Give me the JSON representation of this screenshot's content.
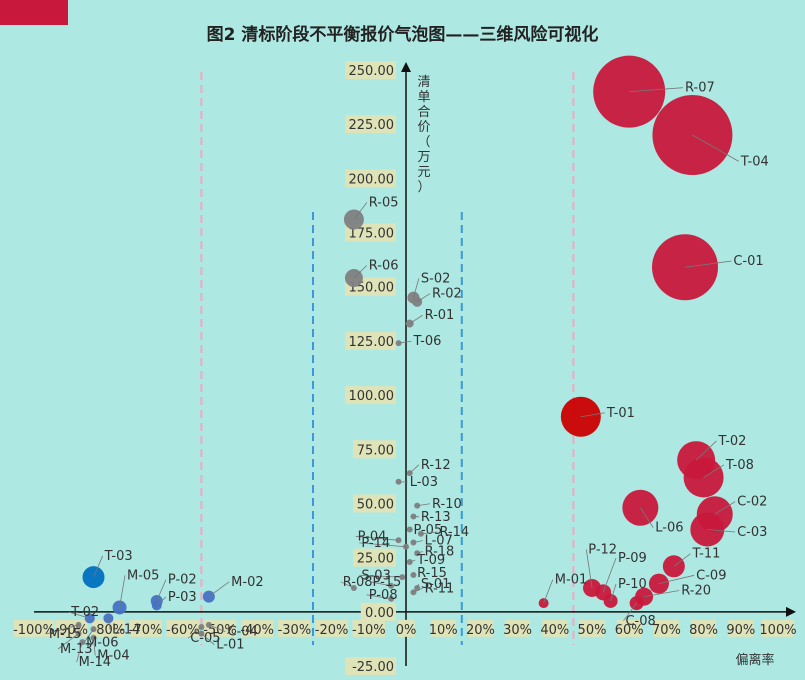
{
  "chart_data": {
    "type": "scatter",
    "title": "图2  清标阶段不平衡报价气泡图——三维风险可视化",
    "xlabel": "偏离率",
    "ylabel": "清单合价（万元）",
    "xlim": [
      -1.0,
      1.0
    ],
    "ylim": [
      -25,
      250
    ],
    "x_ticks": [
      "-100%",
      "-90%",
      "-80%",
      "-70%",
      "-60%",
      "-50%",
      "-40%",
      "-30%",
      "-20%",
      "-10%",
      "0%",
      "10%",
      "20%",
      "30%",
      "40%",
      "50%",
      "60%",
      "70%",
      "80%",
      "90%",
      "100%"
    ],
    "y_ticks": [
      "-25.00",
      "0.00",
      "25.00",
      "50.00",
      "75.00",
      "100.00",
      "125.00",
      "150.00",
      "175.00",
      "200.00",
      "225.00",
      "250.00"
    ],
    "reference_lines": {
      "pink_dashed": [
        -0.55,
        0.45
      ],
      "blue_dashed": [
        -0.25,
        0.15
      ]
    },
    "colors": {
      "accent_block": "#c8193c",
      "high_positive": "#c8193c",
      "highlight_red": "#cc0000",
      "neutral": "#808080",
      "negative": "#4472c4",
      "highlight_blue": "#0070c0",
      "pink_line": "#f4a8c0",
      "blue_line": "#3a9ad9"
    },
    "points": [
      {
        "label": "R-07",
        "x": 0.6,
        "y": 240,
        "size": 36,
        "color": "#c8193c",
        "lx": 0.75,
        "ly": 240
      },
      {
        "label": "T-04",
        "x": 0.77,
        "y": 220,
        "size": 40,
        "color": "#c8193c",
        "lx": 0.9,
        "ly": 206
      },
      {
        "label": "C-01",
        "x": 0.75,
        "y": 159,
        "size": 33,
        "color": "#c8193c",
        "lx": 0.88,
        "ly": 160
      },
      {
        "label": "T-01",
        "x": 0.47,
        "y": 90,
        "size": 20,
        "color": "#cc0000",
        "lx": 0.54,
        "ly": 90
      },
      {
        "label": "T-02",
        "x": 0.78,
        "y": 70,
        "size": 19,
        "color": "#c8193c",
        "lx": 0.84,
        "ly": 77
      },
      {
        "label": "T-08",
        "x": 0.8,
        "y": 62,
        "size": 20,
        "color": "#c8193c",
        "lx": 0.86,
        "ly": 66
      },
      {
        "label": "C-02",
        "x": 0.83,
        "y": 45,
        "size": 18,
        "color": "#c8193c",
        "lx": 0.89,
        "ly": 49
      },
      {
        "label": "C-03",
        "x": 0.81,
        "y": 38,
        "size": 17,
        "color": "#c8193c",
        "lx": 0.89,
        "ly": 35
      },
      {
        "label": "L-06",
        "x": 0.63,
        "y": 48,
        "size": 18,
        "color": "#c8193c",
        "lx": 0.67,
        "ly": 37
      },
      {
        "label": "T-11",
        "x": 0.72,
        "y": 21,
        "size": 11,
        "color": "#c8193c",
        "lx": 0.77,
        "ly": 25
      },
      {
        "label": "C-09",
        "x": 0.68,
        "y": 13,
        "size": 10,
        "color": "#c8193c",
        "lx": 0.78,
        "ly": 15
      },
      {
        "label": "R-20",
        "x": 0.64,
        "y": 7,
        "size": 9,
        "color": "#c8193c",
        "lx": 0.74,
        "ly": 8
      },
      {
        "label": "P-12",
        "x": 0.5,
        "y": 11,
        "size": 9,
        "color": "#c8193c",
        "lx": 0.49,
        "ly": 27
      },
      {
        "label": "P-09",
        "x": 0.53,
        "y": 9,
        "size": 8,
        "color": "#c8193c",
        "lx": 0.57,
        "ly": 23
      },
      {
        "label": "P-10",
        "x": 0.55,
        "y": 5,
        "size": 7,
        "color": "#c8193c",
        "lx": 0.57,
        "ly": 11
      },
      {
        "label": "C-08",
        "x": 0.62,
        "y": 4,
        "size": 7,
        "color": "#c8193c",
        "lx": 0.59,
        "ly": -6
      },
      {
        "label": "M-01",
        "x": 0.37,
        "y": 4,
        "size": 5,
        "color": "#c8193c",
        "lx": 0.4,
        "ly": 13
      },
      {
        "label": "R-05",
        "x": -0.14,
        "y": 181,
        "size": 10,
        "color": "#808080",
        "lx": -0.1,
        "ly": 187
      },
      {
        "label": "R-06",
        "x": -0.14,
        "y": 154,
        "size": 9,
        "color": "#808080",
        "lx": -0.1,
        "ly": 158
      },
      {
        "label": "S-02",
        "x": 0.02,
        "y": 145,
        "size": 6,
        "color": "#808080",
        "lx": 0.04,
        "ly": 152
      },
      {
        "label": "R-02",
        "x": 0.03,
        "y": 143,
        "size": 5,
        "color": "#808080",
        "lx": 0.07,
        "ly": 145
      },
      {
        "label": "R-01",
        "x": 0.01,
        "y": 133,
        "size": 4,
        "color": "#808080",
        "lx": 0.05,
        "ly": 135
      },
      {
        "label": "T-06",
        "x": -0.02,
        "y": 124,
        "size": 3,
        "color": "#808080",
        "lx": 0.02,
        "ly": 123
      },
      {
        "label": "R-12",
        "x": 0.01,
        "y": 64,
        "size": 3,
        "color": "#808080",
        "lx": 0.04,
        "ly": 66
      },
      {
        "label": "L-03",
        "x": -0.02,
        "y": 60,
        "size": 3,
        "color": "#808080",
        "lx": 0.01,
        "ly": 58
      },
      {
        "label": "R-10",
        "x": 0.03,
        "y": 49,
        "size": 3,
        "color": "#808080",
        "lx": 0.07,
        "ly": 48
      },
      {
        "label": "R-13",
        "x": 0.02,
        "y": 44,
        "size": 3,
        "color": "#808080",
        "lx": 0.04,
        "ly": 42
      },
      {
        "label": "P-05",
        "x": 0.01,
        "y": 38,
        "size": 3,
        "color": "#808080",
        "lx": 0.02,
        "ly": 36
      },
      {
        "label": "R-14",
        "x": 0.04,
        "y": 36,
        "size": 3,
        "color": "#808080",
        "lx": 0.09,
        "ly": 35
      },
      {
        "label": "P-04",
        "x": -0.02,
        "y": 33,
        "size": 3,
        "color": "#808080",
        "lx": -0.13,
        "ly": 33
      },
      {
        "label": "L-07",
        "x": 0.02,
        "y": 32,
        "size": 3,
        "color": "#808080",
        "lx": 0.05,
        "ly": 31
      },
      {
        "label": "P-14",
        "x": 0.0,
        "y": 30,
        "size": 3,
        "color": "#808080",
        "lx": -0.12,
        "ly": 30
      },
      {
        "label": "R-18",
        "x": 0.03,
        "y": 27,
        "size": 3,
        "color": "#808080",
        "lx": 0.05,
        "ly": 26
      },
      {
        "label": "T-09",
        "x": 0.01,
        "y": 23,
        "size": 3,
        "color": "#808080",
        "lx": 0.03,
        "ly": 22
      },
      {
        "label": "R-15",
        "x": 0.02,
        "y": 17,
        "size": 3,
        "color": "#808080",
        "lx": 0.03,
        "ly": 16
      },
      {
        "label": "S-03",
        "x": -0.01,
        "y": 16,
        "size": 3,
        "color": "#808080",
        "lx": -0.12,
        "ly": 15
      },
      {
        "label": "R-08",
        "x": -0.14,
        "y": 11,
        "size": 3,
        "color": "#808080",
        "lx": -0.17,
        "ly": 12
      },
      {
        "label": "P-15",
        "x": -0.04,
        "y": 12,
        "size": 3,
        "color": "#808080",
        "lx": -0.09,
        "ly": 12
      },
      {
        "label": "S-01",
        "x": 0.03,
        "y": 11,
        "size": 3,
        "color": "#808080",
        "lx": 0.04,
        "ly": 11
      },
      {
        "label": "R-11",
        "x": 0.02,
        "y": 9,
        "size": 3,
        "color": "#808080",
        "lx": 0.05,
        "ly": 9
      },
      {
        "label": "P-08",
        "x": -0.04,
        "y": 6,
        "size": 3,
        "color": "#808080",
        "lx": -0.1,
        "ly": 6
      },
      {
        "label": "T-03",
        "x": -0.84,
        "y": 16,
        "size": 11,
        "color": "#0070c0",
        "lx": -0.81,
        "ly": 24
      },
      {
        "label": "M-05",
        "x": -0.77,
        "y": 2,
        "size": 7,
        "color": "#4472c4",
        "lx": -0.75,
        "ly": 15
      },
      {
        "label": "P-02",
        "x": -0.67,
        "y": 5,
        "size": 6,
        "color": "#4472c4",
        "lx": -0.64,
        "ly": 13
      },
      {
        "label": "P-03",
        "x": -0.67,
        "y": 3,
        "size": 5,
        "color": "#4472c4",
        "lx": -0.64,
        "ly": 5
      },
      {
        "label": "M-02",
        "x": -0.53,
        "y": 7,
        "size": 6,
        "color": "#4472c4",
        "lx": -0.47,
        "ly": 12
      },
      {
        "label": "T-02b",
        "display": "T-02",
        "x": -0.85,
        "y": -3,
        "size": 5,
        "color": "#4472c4",
        "lx": -0.9,
        "ly": -2
      },
      {
        "label": "L-14",
        "x": -0.8,
        "y": -3,
        "size": 5,
        "color": "#4472c4",
        "lx": -0.79,
        "ly": -10
      },
      {
        "label": "M-15",
        "x": -0.88,
        "y": -6,
        "size": 3,
        "color": "#808080",
        "lx": -0.96,
        "ly": -12
      },
      {
        "label": "M-06",
        "x": -0.84,
        "y": -8,
        "size": 3,
        "color": "#808080",
        "lx": -0.86,
        "ly": -16
      },
      {
        "label": "M-13",
        "x": -0.88,
        "y": -10,
        "size": 3,
        "color": "#808080",
        "lx": -0.93,
        "ly": -19
      },
      {
        "label": "M-04",
        "x": -0.84,
        "y": -12,
        "size": 3,
        "color": "#808080",
        "lx": -0.83,
        "ly": -22
      },
      {
        "label": "M-14",
        "x": -0.87,
        "y": -14,
        "size": 3,
        "color": "#808080",
        "lx": -0.88,
        "ly": -25
      },
      {
        "label": "C-05",
        "x": -0.55,
        "y": -7,
        "size": 3,
        "color": "#808080",
        "lx": -0.58,
        "ly": -14
      },
      {
        "label": "C-04",
        "x": -0.53,
        "y": -6,
        "size": 3,
        "color": "#808080",
        "lx": -0.48,
        "ly": -11
      },
      {
        "label": "L-01",
        "x": -0.55,
        "y": -10,
        "size": 3,
        "color": "#808080",
        "lx": -0.51,
        "ly": -17
      }
    ]
  }
}
